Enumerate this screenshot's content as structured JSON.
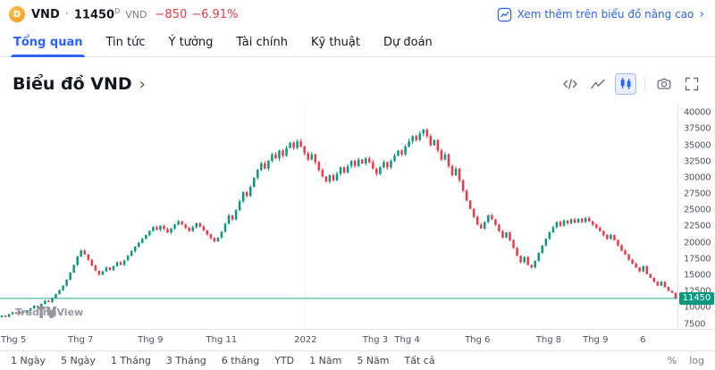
{
  "header": {
    "logo_letter": "D",
    "symbol": "VND",
    "separator": "·",
    "price": "11450",
    "market_flag": "D",
    "currency": "VND",
    "change": "−850",
    "change_percent": "−6.91%",
    "advanced_link": "Xem thêm trên biểu đồ nâng cao",
    "link_chevron": "›"
  },
  "tabs": [
    {
      "id": "tong-quan",
      "label": "Tổng quan",
      "active": true
    },
    {
      "id": "tin-tuc",
      "label": "Tin tức",
      "active": false
    },
    {
      "id": "y-tuong",
      "label": "Ý tưởng",
      "active": false
    },
    {
      "id": "tai-chinh",
      "label": "Tài chính",
      "active": false
    },
    {
      "id": "ky-thuat",
      "label": "Kỹ thuật",
      "active": false
    },
    {
      "id": "du-doan",
      "label": "Dự đoán",
      "active": false
    }
  ],
  "chart_header": {
    "title": "Biểu đồ VND",
    "chevron": "›"
  },
  "icons": {
    "advanced_link_icon": "chart-in-rounded-square",
    "tools": [
      "source-code-icon",
      "line-chart-icon",
      "candlestick-chart-icon",
      "camera-icon",
      "fullscreen-icon"
    ],
    "watermark_logo": "tradingview-tv-monogram"
  },
  "watermark": "TradingView",
  "footer": {
    "ranges": [
      {
        "id": "1-ngay",
        "label": "1 Ngày"
      },
      {
        "id": "5-ngay",
        "label": "5 Ngày"
      },
      {
        "id": "1-thang",
        "label": "1 Tháng"
      },
      {
        "id": "3-thang",
        "label": "3 Tháng"
      },
      {
        "id": "6-thang",
        "label": "6 tháng"
      },
      {
        "id": "ytd",
        "label": "YTD"
      },
      {
        "id": "1-nam",
        "label": "1 Năm"
      },
      {
        "id": "5-nam",
        "label": "5 Năm"
      },
      {
        "id": "tat-ca",
        "label": "Tất cả"
      }
    ],
    "scale_percent": "%",
    "scale_log": "log"
  },
  "chart_data": {
    "type": "candlestick",
    "symbol": "VND",
    "current_price": 11450,
    "y_axis": {
      "min": 6750,
      "max": 41400,
      "ticks": [
        40000,
        37500,
        35000,
        32500,
        30000,
        27500,
        25000,
        22500,
        20000,
        17500,
        15000,
        12500,
        10000,
        7500
      ]
    },
    "x_axis": {
      "labels": [
        {
          "text": "Thg 5",
          "f": 0.02
        },
        {
          "text": "Thg 7",
          "f": 0.119
        },
        {
          "text": "Thg 9",
          "f": 0.222
        },
        {
          "text": "Thg 11",
          "f": 0.327
        },
        {
          "text": "2022",
          "f": 0.451
        },
        {
          "text": "Thg 3",
          "f": 0.554
        },
        {
          "text": "Thg 4",
          "f": 0.601
        },
        {
          "text": "Thg 6",
          "f": 0.705
        },
        {
          "text": "Thg 8",
          "f": 0.81
        },
        {
          "text": "Thg 9",
          "f": 0.879
        },
        {
          "text": "6",
          "f": 0.949
        }
      ],
      "session_lines": [
        0.451
      ]
    },
    "colors": {
      "up": "#089981",
      "down": "#f23645",
      "price_line": "#089981",
      "axis_text": "#50535e"
    },
    "closes": [
      8800,
      8600,
      9000,
      9300,
      9100,
      9400,
      9200,
      9600,
      9900,
      10300,
      10100,
      10600,
      11100,
      10900,
      11500,
      12100,
      12700,
      13400,
      14300,
      15400,
      16600,
      17900,
      18800,
      18200,
      17400,
      16500,
      15700,
      15100,
      15600,
      16200,
      15800,
      16400,
      17000,
      16600,
      17300,
      18000,
      18700,
      19400,
      20000,
      20600,
      21200,
      21800,
      22400,
      22000,
      22600,
      22100,
      21600,
      22200,
      22800,
      23300,
      22800,
      22300,
      21800,
      22400,
      23000,
      22500,
      21900,
      21300,
      20700,
      20200,
      20800,
      21700,
      22900,
      24200,
      23600,
      25000,
      26400,
      27800,
      27200,
      28600,
      30000,
      31200,
      32200,
      31400,
      32600,
      33600,
      33000,
      34200,
      33400,
      34600,
      35400,
      34600,
      35600,
      34800,
      33800,
      32800,
      33600,
      32400,
      31200,
      30200,
      29400,
      30400,
      29600,
      30600,
      31600,
      30800,
      31800,
      32600,
      31800,
      32800,
      32200,
      33000,
      32400,
      31400,
      30600,
      31600,
      32400,
      31600,
      32600,
      33400,
      34200,
      33600,
      34800,
      35600,
      36400,
      35800,
      36800,
      37400,
      36400,
      35000,
      35800,
      34200,
      32800,
      33600,
      31800,
      30400,
      31400,
      29600,
      28000,
      26500,
      25200,
      24000,
      22800,
      22200,
      23200,
      24200,
      23600,
      22800,
      21800,
      20800,
      21600,
      20400,
      19200,
      18000,
      17000,
      17800,
      16600,
      16200,
      17200,
      18400,
      19600,
      20600,
      21600,
      22400,
      23200,
      22600,
      23400,
      23000,
      23600,
      23100,
      23700,
      23200,
      23800,
      23300,
      22800,
      22300,
      21800,
      21200,
      20600,
      21200,
      20400,
      19600,
      18800,
      18200,
      17400,
      16800,
      16200,
      15600,
      16400,
      15200,
      14600,
      14000,
      13400,
      14000,
      13200,
      12600,
      12300,
      11450
    ]
  }
}
